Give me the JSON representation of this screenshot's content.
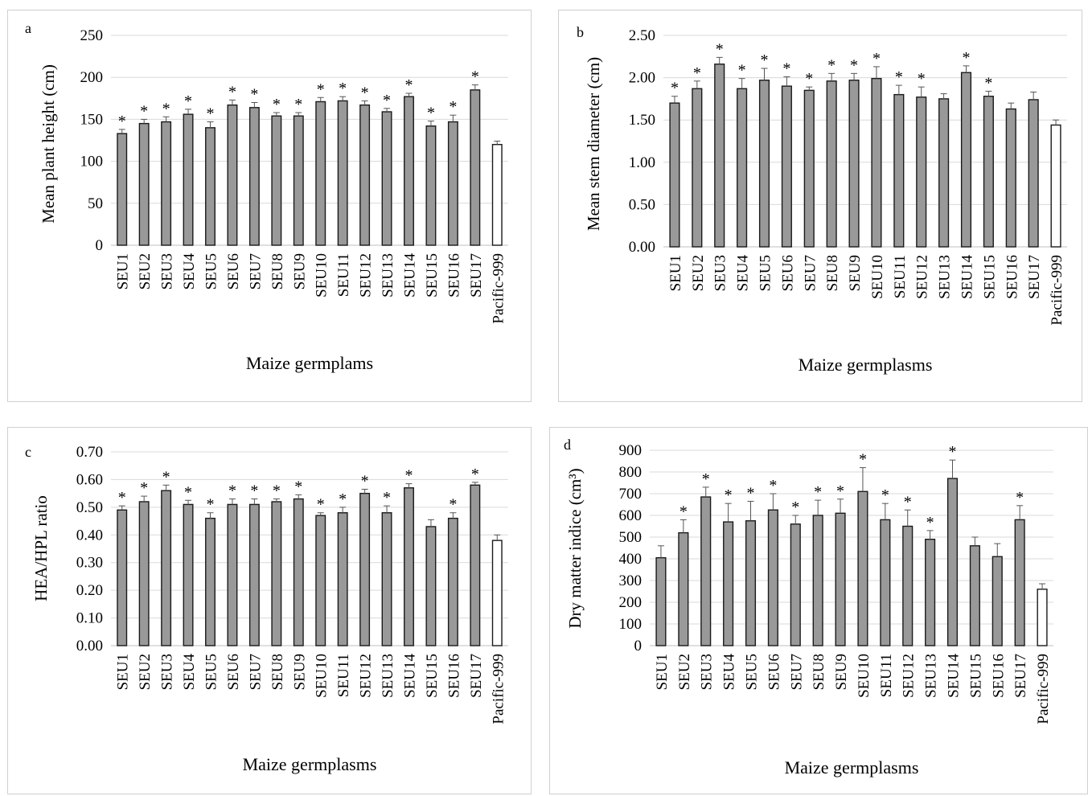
{
  "colors": {
    "bar_fill": "#999999",
    "bar_edge": "#1a1a1a",
    "control_fill": "#ffffff",
    "grid": "#d9d9d9"
  },
  "categories": [
    "SEU1",
    "SEU2",
    "SEU3",
    "SEU4",
    "SEU5",
    "SEU6",
    "SEU7",
    "SEU8",
    "SEU9",
    "SEU10",
    "SEU11",
    "SEU12",
    "SEU13",
    "SEU14",
    "SEU15",
    "SEU16",
    "SEU17",
    "Pacific-999"
  ],
  "chart_data": [
    {
      "id": "a",
      "panel_label": "a",
      "type": "bar",
      "ylabel": "Mean plant height  (cm)",
      "xlabel": "Maize germplams",
      "ylim": [
        0,
        250
      ],
      "yticks": [
        "0",
        "50",
        "100",
        "150",
        "200",
        "250"
      ],
      "grid": true,
      "categories": [
        "SEU1",
        "SEU2",
        "SEU3",
        "SEU4",
        "SEU5",
        "SEU6",
        "SEU7",
        "SEU8",
        "SEU9",
        "SEU10",
        "SEU11",
        "SEU12",
        "SEU13",
        "SEU14",
        "SEU15",
        "SEU16",
        "SEU17",
        "Pacific-999"
      ],
      "values": [
        133,
        145,
        147,
        156,
        140,
        167,
        164,
        154,
        154,
        171,
        172,
        167,
        159,
        177,
        142,
        147,
        185,
        120
      ],
      "errors": [
        5,
        5,
        6,
        6,
        7,
        6,
        6,
        4,
        4,
        5,
        5,
        5,
        4,
        4,
        6,
        8,
        6,
        4
      ],
      "significant": [
        true,
        true,
        true,
        true,
        true,
        true,
        true,
        true,
        true,
        true,
        true,
        true,
        true,
        true,
        true,
        true,
        true,
        false
      ],
      "sig_marker": "*"
    },
    {
      "id": "b",
      "panel_label": "b",
      "type": "bar",
      "ylabel": "Mean stem diameter  (cm)",
      "xlabel": "Maize germplasms",
      "ylim": [
        0,
        2.5
      ],
      "yticks": [
        "0.00",
        "0.50",
        "1.00",
        "1.50",
        "2.00",
        "2.50"
      ],
      "grid": true,
      "categories": [
        "SEU1",
        "SEU2",
        "SEU3",
        "SEU4",
        "SEU5",
        "SEU6",
        "SEU7",
        "SEU8",
        "SEU9",
        "SEU10",
        "SEU11",
        "SEU12",
        "SEU13",
        "SEU14",
        "SEU15",
        "SEU16",
        "SEU17",
        "Pacific-999"
      ],
      "values": [
        1.7,
        1.87,
        2.16,
        1.87,
        1.97,
        1.9,
        1.85,
        1.96,
        1.97,
        1.99,
        1.8,
        1.77,
        1.75,
        2.06,
        1.78,
        1.63,
        1.74,
        1.44
      ],
      "errors": [
        0.08,
        0.09,
        0.08,
        0.12,
        0.14,
        0.11,
        0.04,
        0.09,
        0.08,
        0.14,
        0.11,
        0.12,
        0.06,
        0.08,
        0.06,
        0.07,
        0.09,
        0.06
      ],
      "significant": [
        true,
        true,
        true,
        true,
        true,
        true,
        true,
        true,
        true,
        true,
        true,
        true,
        false,
        true,
        true,
        false,
        false,
        false
      ],
      "sig_marker": "*"
    },
    {
      "id": "c",
      "panel_label": "c",
      "type": "bar",
      "ylabel": "HEA/HPL ratio",
      "xlabel": "Maize germplasms",
      "ylim": [
        0,
        0.7
      ],
      "yticks": [
        "0.00",
        "0.10",
        "0.20",
        "0.30",
        "0.40",
        "0.50",
        "0.60",
        "0.70"
      ],
      "grid": true,
      "categories": [
        "SEU1",
        "SEU2",
        "SEU3",
        "SEU4",
        "SEU5",
        "SEU6",
        "SEU7",
        "SEU8",
        "SEU9",
        "SEU10",
        "SEU11",
        "SEU12",
        "SEU13",
        "SEU14",
        "SEU15",
        "SEU16",
        "SEU17",
        "Pacific-999"
      ],
      "values": [
        0.49,
        0.52,
        0.56,
        0.51,
        0.46,
        0.51,
        0.51,
        0.52,
        0.53,
        0.47,
        0.48,
        0.55,
        0.48,
        0.57,
        0.43,
        0.46,
        0.58,
        0.38
      ],
      "errors": [
        0.015,
        0.02,
        0.02,
        0.015,
        0.02,
        0.02,
        0.02,
        0.01,
        0.015,
        0.01,
        0.02,
        0.015,
        0.025,
        0.015,
        0.025,
        0.02,
        0.01,
        0.02
      ],
      "significant": [
        true,
        true,
        true,
        true,
        true,
        true,
        true,
        true,
        true,
        true,
        true,
        true,
        true,
        true,
        false,
        true,
        true,
        false
      ],
      "sig_marker": "*"
    },
    {
      "id": "d",
      "panel_label": "d",
      "type": "bar",
      "ylabel": "Dry matter indice (cm³)",
      "xlabel": "Maize germplasms",
      "ylim": [
        0,
        900
      ],
      "yticks": [
        "0",
        "100",
        "200",
        "300",
        "400",
        "500",
        "600",
        "700",
        "800",
        "900"
      ],
      "grid": true,
      "categories": [
        "SEU1",
        "SEU2",
        "SEU3",
        "SEU4",
        "SEU5",
        "SEU6",
        "SEU7",
        "SEU8",
        "SEU9",
        "SEU10",
        "SEU11",
        "SEU12",
        "SEU13",
        "SEU14",
        "SEU15",
        "SEU16",
        "SEU17",
        "Pacific-999"
      ],
      "values": [
        405,
        520,
        685,
        570,
        575,
        625,
        560,
        600,
        610,
        710,
        580,
        550,
        490,
        770,
        460,
        410,
        580,
        260
      ],
      "errors": [
        55,
        60,
        45,
        85,
        90,
        75,
        40,
        70,
        65,
        110,
        75,
        75,
        40,
        85,
        40,
        60,
        65,
        25
      ],
      "significant": [
        false,
        true,
        true,
        true,
        true,
        true,
        true,
        true,
        true,
        true,
        true,
        true,
        true,
        true,
        false,
        false,
        true,
        false
      ],
      "sig_marker": "*"
    }
  ]
}
